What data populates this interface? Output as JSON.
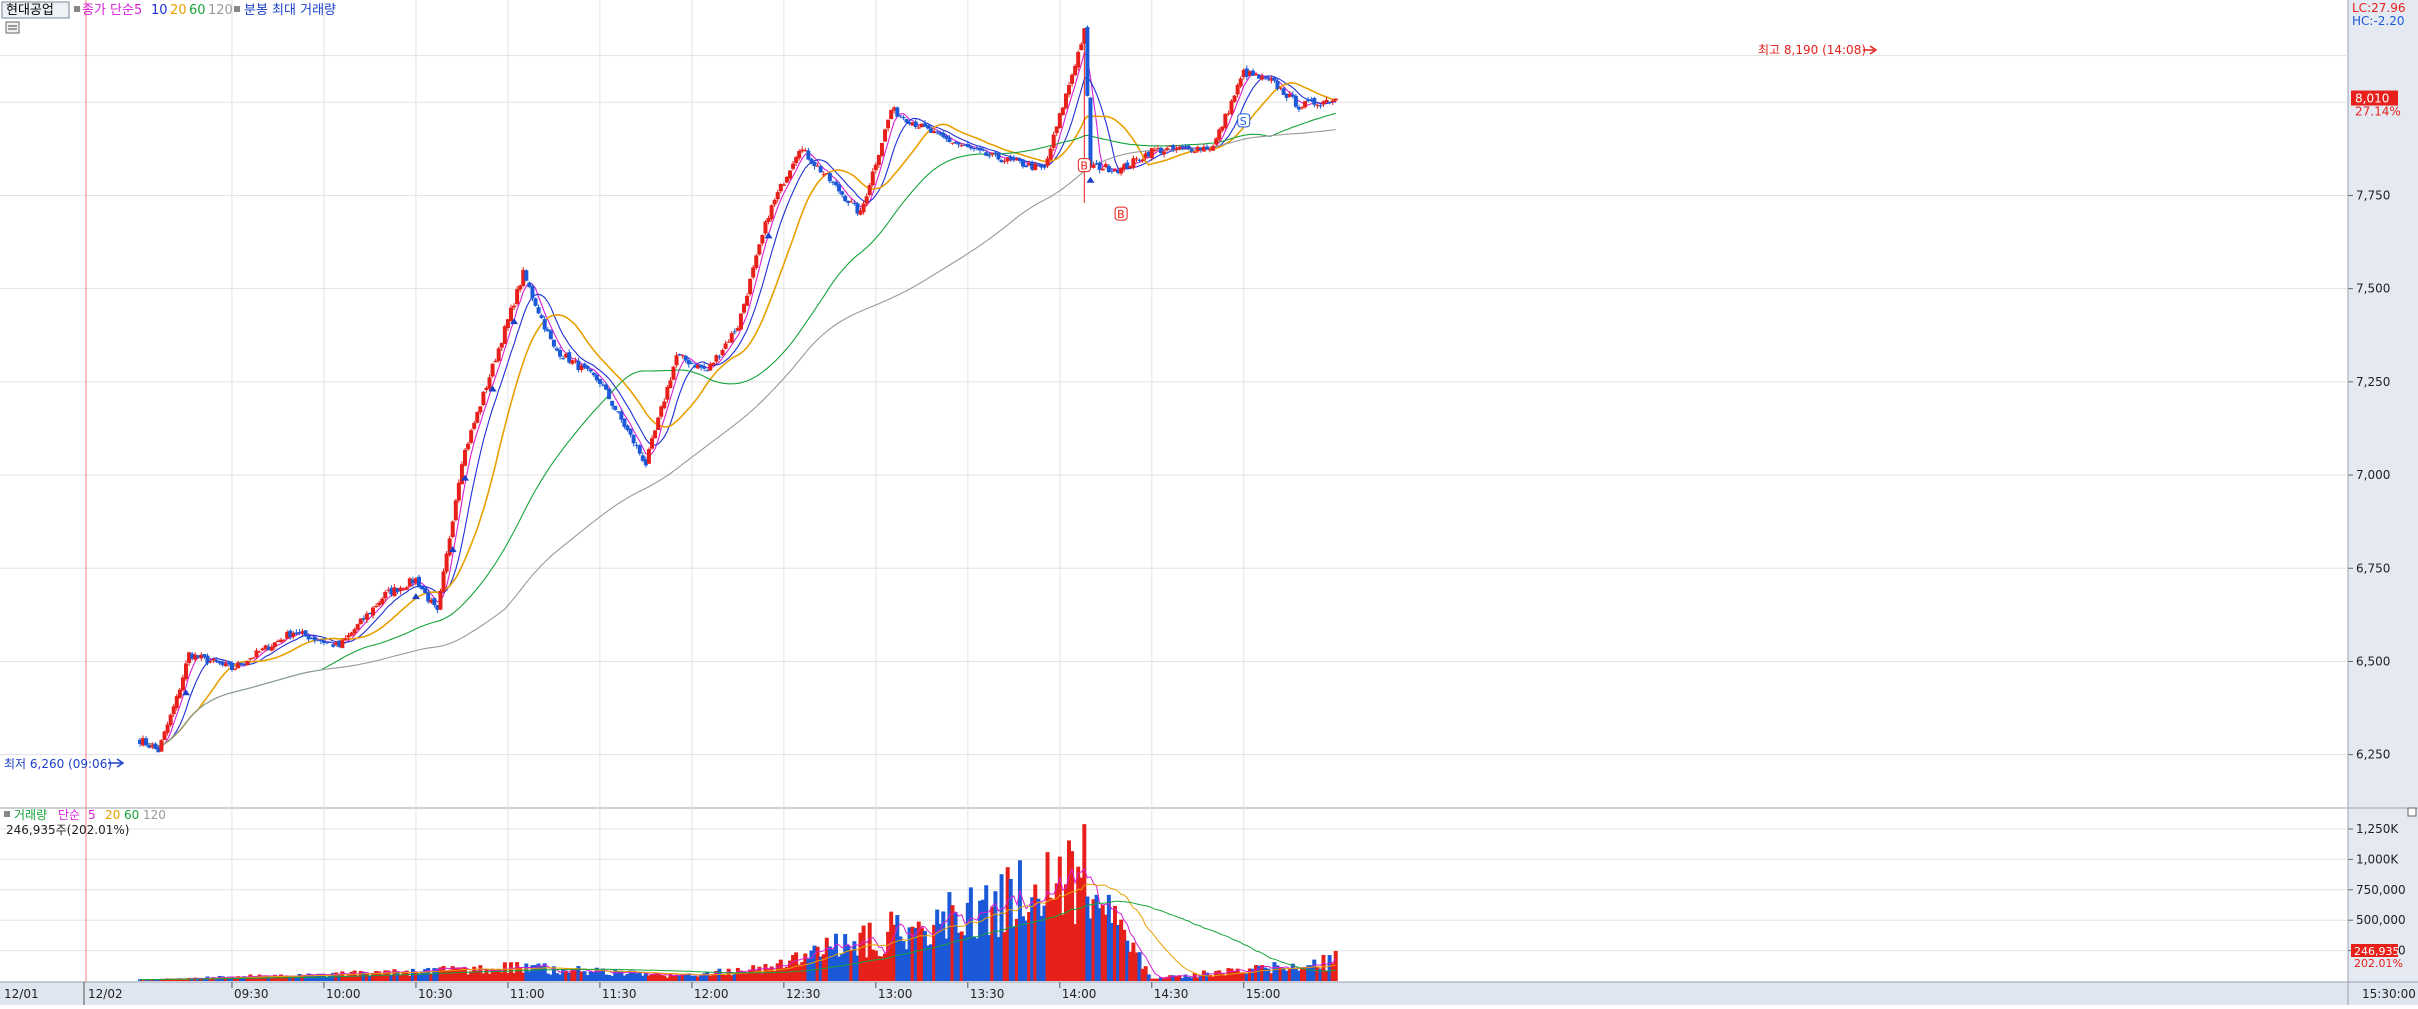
{
  "header": {
    "stock_name": "현대공업",
    "indicator_prefix": "종가 단순",
    "ma_periods": [
      "5",
      "10",
      "20",
      "60",
      "120"
    ],
    "volume_note": "분봉 최대 거래량",
    "lc_label": "LC:27.96",
    "hc_label": "HC:-2.20"
  },
  "volume_header": {
    "title": "거래량",
    "prefix": "단순",
    "periods": [
      "5",
      "20",
      "60",
      "120"
    ],
    "current": "246,935주(202.01%)"
  },
  "price_axis": {
    "ticks": [
      {
        "value": 6250,
        "label": "6,250"
      },
      {
        "value": 6500,
        "label": "6,500"
      },
      {
        "value": 6750,
        "label": "6,750"
      },
      {
        "value": 7000,
        "label": "7,000"
      },
      {
        "value": 7250,
        "label": "7,250"
      },
      {
        "value": 7500,
        "label": "7,500"
      },
      {
        "value": 7750,
        "label": "7,750"
      }
    ],
    "current_value": 8010,
    "current_label": "8,010",
    "current_pct": "27.14%"
  },
  "volume_axis": {
    "ticks": [
      {
        "value": 250000,
        "label": "250,000"
      },
      {
        "value": 500000,
        "label": "500,000"
      },
      {
        "value": 750000,
        "label": "750,000"
      },
      {
        "value": 1000000,
        "label": "1,000K"
      },
      {
        "value": 1250000,
        "label": "1,250K"
      }
    ],
    "current_label": "246,935",
    "current_pct": "202.01%"
  },
  "time_axis": {
    "labels": [
      "12/01",
      "12/02",
      "09:30",
      "10:00",
      "10:30",
      "11:00",
      "11:30",
      "12:00",
      "12:30",
      "13:00",
      "13:30",
      "14:00",
      "14:30",
      "15:00",
      "15:30:00"
    ]
  },
  "annotations": {
    "high_label": "최고 8,190 (14:08)",
    "low_label": "최저 6,260 (09:06)",
    "signal_b": "B",
    "signal_s": "S"
  },
  "colors": {
    "up": "#e8201b",
    "down": "#1b59d8",
    "ma5": "#d61fd6",
    "ma10": "#1e2fd6",
    "ma20": "#e8a000",
    "ma60": "#17a33b",
    "ma120": "#999999",
    "grid": "#e3e3e3",
    "axis_bg": "#ffffff",
    "right_panel_bg": "#e4e9f2",
    "bottom_bg": "#dfe6f0"
  },
  "chart_data": {
    "type": "candlestick",
    "time_range": [
      "09:00",
      "15:30"
    ],
    "ylim": [
      6175,
      8270
    ],
    "key_points": [
      {
        "time": "09:00",
        "price": 6290
      },
      {
        "time": "09:06",
        "price": 6260
      },
      {
        "time": "09:12",
        "price": 6400
      },
      {
        "time": "09:16",
        "price": 6520
      },
      {
        "time": "09:30",
        "price": 6480
      },
      {
        "time": "09:50",
        "price": 6580
      },
      {
        "time": "10:05",
        "price": 6540
      },
      {
        "time": "10:20",
        "price": 6680
      },
      {
        "time": "10:30",
        "price": 6720
      },
      {
        "time": "10:37",
        "price": 6630
      },
      {
        "time": "10:45",
        "price": 7040
      },
      {
        "time": "10:55",
        "price": 7290
      },
      {
        "time": "11:05",
        "price": 7540
      },
      {
        "time": "11:15",
        "price": 7340
      },
      {
        "time": "11:30",
        "price": 7250
      },
      {
        "time": "11:45",
        "price": 7030
      },
      {
        "time": "11:55",
        "price": 7320
      },
      {
        "time": "12:05",
        "price": 7280
      },
      {
        "time": "12:15",
        "price": 7400
      },
      {
        "time": "12:25",
        "price": 7700
      },
      {
        "time": "12:35",
        "price": 7880
      },
      {
        "time": "12:55",
        "price": 7700
      },
      {
        "time": "13:05",
        "price": 7980
      },
      {
        "time": "13:20",
        "price": 7910
      },
      {
        "time": "13:35",
        "price": 7860
      },
      {
        "time": "13:55",
        "price": 7820
      },
      {
        "time": "14:08",
        "price": 8190
      },
      {
        "time": "14:10",
        "price": 7830
      },
      {
        "time": "14:20",
        "price": 7820
      },
      {
        "time": "14:30",
        "price": 7870
      },
      {
        "time": "14:50",
        "price": 7880
      },
      {
        "time": "15:00",
        "price": 8080
      },
      {
        "time": "15:10",
        "price": 8050
      },
      {
        "time": "15:18",
        "price": 7990
      },
      {
        "time": "15:30",
        "price": 8010
      }
    ],
    "volume_key_points": [
      {
        "time": "09:00",
        "volume": 15000
      },
      {
        "time": "10:45",
        "volume": 140000
      },
      {
        "time": "11:00",
        "volume": 180000
      },
      {
        "time": "11:55",
        "volume": 60000
      },
      {
        "time": "12:25",
        "volume": 170000
      },
      {
        "time": "14:08",
        "volume": 1290000
      },
      {
        "time": "14:30",
        "volume": 30000
      },
      {
        "time": "15:30",
        "volume": 246935
      }
    ],
    "moving_averages": [
      "5",
      "10",
      "20",
      "60",
      "120"
    ]
  }
}
